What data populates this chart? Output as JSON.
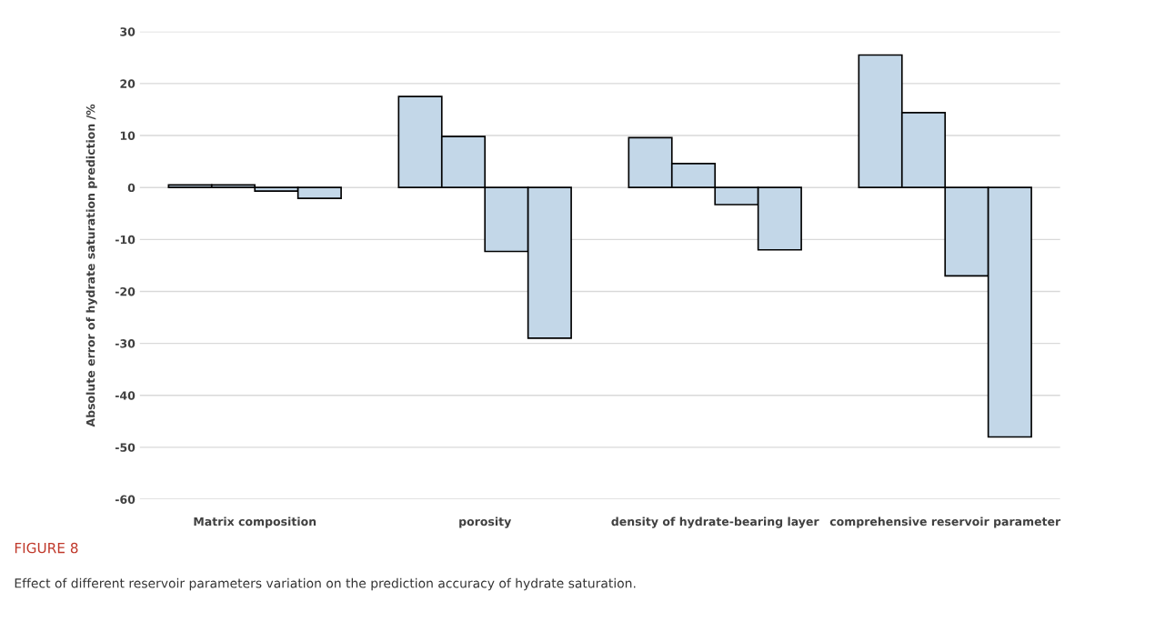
{
  "chart_data": {
    "type": "bar",
    "ylabel": "Absolute error of hydrate saturation prediction /%",
    "categories": [
      "Matrix composition",
      "porosity",
      "density of hydrate-bearing layer",
      "comprehensive reservoir parameter"
    ],
    "series": [
      {
        "color": "#bdd7ee",
        "values": [
          0.5,
          17.5,
          9.6,
          25.5
        ]
      },
      {
        "color": "#bdd7ee",
        "values": [
          0.5,
          9.8,
          4.6,
          14.4
        ]
      },
      {
        "color": "#bdd7ee",
        "values": [
          -0.7,
          -12.3,
          -3.3,
          -17
        ]
      },
      {
        "color": "#bdd7ee",
        "values": [
          -2.1,
          -29,
          -12,
          -48
        ]
      }
    ],
    "ylim": [
      -60,
      30
    ],
    "yticks": [
      -60,
      -50,
      -40,
      -30,
      -20,
      -10,
      0,
      10,
      20,
      30
    ],
    "grid": "y",
    "legend": false,
    "annotations": [
      "FIGURE 8",
      "Effect of different reservoir parameters variation on the prediction accuracy of hydrate saturation."
    ]
  }
}
